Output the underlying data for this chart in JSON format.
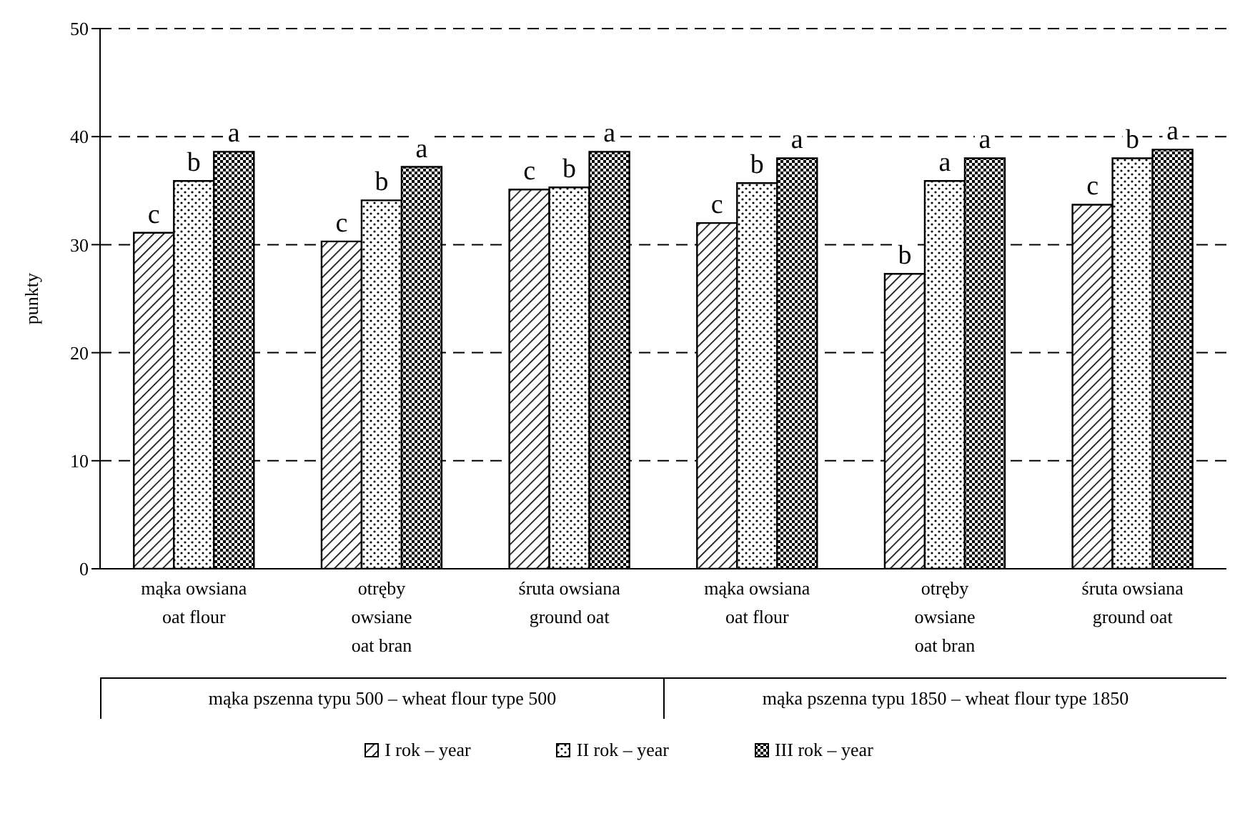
{
  "chart_data": {
    "type": "bar",
    "ylabel": "punkty",
    "categories": [
      "mąka owsiana\noat flour",
      "otręby\nowsiane\noat bran",
      "śruta owsiana\nground oat",
      "mąka owsiana\noat flour",
      "otręby\nowsiane\noat bran",
      "śruta owsiana\nground oat"
    ],
    "series": [
      {
        "name": "I rok – year",
        "color": "#000000",
        "values": [
          31.1,
          30.3,
          35.1,
          32.0,
          27.3,
          33.7
        ],
        "value_labels": [
          "c",
          "c",
          "c",
          "c",
          "b",
          "c"
        ]
      },
      {
        "name": "II rok – year",
        "color": "#000000",
        "values": [
          35.9,
          34.1,
          35.3,
          35.7,
          35.9,
          38.0
        ],
        "value_labels": [
          "b",
          "b",
          "b",
          "b",
          "a",
          "b"
        ]
      },
      {
        "name": "III rok – year",
        "color": "#000000",
        "values": [
          38.6,
          37.2,
          38.6,
          38.0,
          38.0,
          38.8
        ],
        "value_labels": [
          "a",
          "a",
          "a",
          "a",
          "a",
          "a"
        ]
      }
    ],
    "annotations": [
      "mąka pszenna typu 500 – wheat flour type 500",
      "mąka pszenna typu 1850 – wheat flour type 1850"
    ],
    "ylim": [
      0,
      50
    ],
    "yticks": [
      0,
      10,
      20,
      30,
      40,
      50
    ],
    "grid": "y",
    "legend": "bottom"
  }
}
